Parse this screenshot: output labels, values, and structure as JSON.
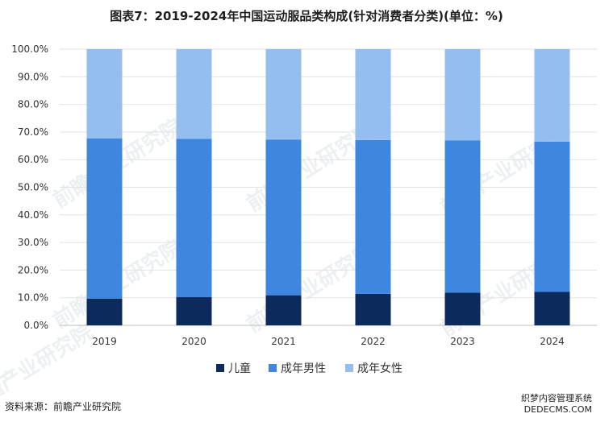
{
  "title": "图表7：2019-2024年中国运动服品类构成(针对消费者分类)(单位：%)",
  "source": "资料来源：前瞻产业研究院",
  "watermark_text": "前瞻产业研究院",
  "corner_watermark": {
    "line1": "织梦内容管理系统",
    "line2": "DEDECMS.COM"
  },
  "colors": {
    "children": "#0d2a5c",
    "men": "#3f86e0",
    "women": "#94bdf0"
  },
  "chart_data": {
    "type": "bar",
    "stacked": true,
    "title": "图表7：2019-2024年中国运动服品类构成(针对消费者分类)(单位：%)",
    "categories": [
      "2019",
      "2020",
      "2021",
      "2022",
      "2023",
      "2024"
    ],
    "series": [
      {
        "name": "儿童",
        "color": "#0d2a5c",
        "values": [
          9.7,
          10.2,
          10.9,
          11.4,
          11.8,
          12.1
        ]
      },
      {
        "name": "成年男性",
        "color": "#3f86e0",
        "values": [
          58.0,
          57.3,
          56.3,
          55.7,
          55.2,
          54.4
        ]
      },
      {
        "name": "成年女性",
        "color": "#94bdf0",
        "values": [
          32.3,
          32.5,
          32.8,
          32.9,
          33.0,
          33.5
        ]
      }
    ],
    "ylim": [
      0,
      100
    ],
    "yticks": [
      "0.0%",
      "10.0%",
      "20.0%",
      "30.0%",
      "40.0%",
      "50.0%",
      "60.0%",
      "70.0%",
      "80.0%",
      "90.0%",
      "100.0%"
    ],
    "grid": true,
    "legend_position": "bottom"
  }
}
